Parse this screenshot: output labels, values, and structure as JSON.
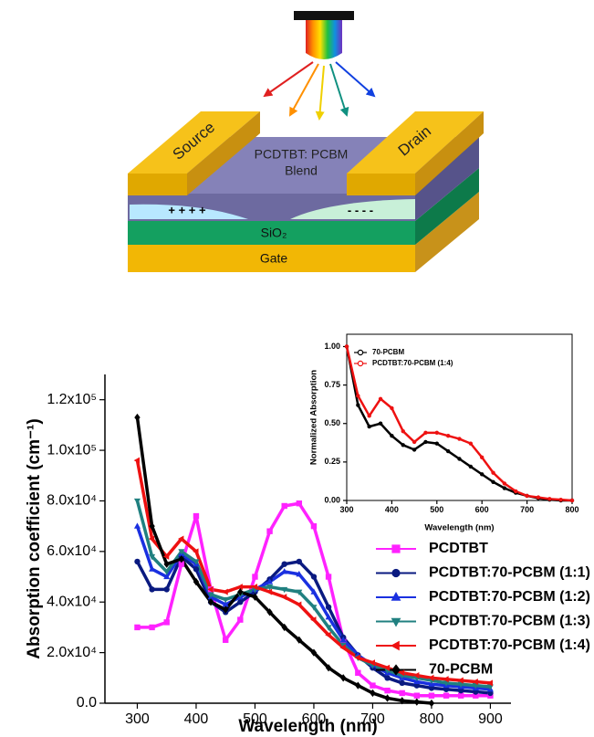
{
  "diagram": {
    "source": "Source",
    "drain": "Drain",
    "blend_line1": "PCDTBT: PCBM",
    "blend_line2": "Blend",
    "holes": "+ + + +",
    "electrons": "- - - -",
    "dielectric": "SiO₂",
    "gate": "Gate"
  },
  "chart_data": [
    {
      "type": "line",
      "x_label": "Wavelength (nm)",
      "y_label": "Absorption coefficient (cm⁻¹)",
      "x": [
        300,
        325,
        350,
        375,
        400,
        425,
        450,
        475,
        500,
        525,
        550,
        575,
        600,
        625,
        650,
        675,
        700,
        725,
        750,
        775,
        800,
        825,
        850,
        875,
        900
      ],
      "xlim": [
        245,
        935
      ],
      "xticks": [
        300,
        400,
        500,
        600,
        700,
        800,
        900
      ],
      "ylim": [
        0,
        130000
      ],
      "yticks": [
        {
          "value": 0,
          "label": "0.0"
        },
        {
          "value": 20000,
          "label": "2.0x10⁴"
        },
        {
          "value": 40000,
          "label": "4.0x10⁴"
        },
        {
          "value": 60000,
          "label": "6.0x10⁴"
        },
        {
          "value": 80000,
          "label": "8.0x10⁴"
        },
        {
          "value": 100000,
          "label": "1.0x10⁵"
        },
        {
          "value": 120000,
          "label": "1.2x10⁵"
        }
      ],
      "legend": "right",
      "grid": false,
      "series": [
        {
          "name": "PCDTBT",
          "color": "#ff22ff",
          "marker": "square",
          "values": [
            30000,
            30000,
            32000,
            55000,
            74000,
            45000,
            25000,
            33000,
            50000,
            68000,
            78000,
            79000,
            70000,
            50000,
            25000,
            12000,
            7000,
            5000,
            4000,
            3000,
            3000,
            3000,
            3000,
            3000,
            3000
          ]
        },
        {
          "name": "PCDTBT:70-PCBM (1:1)",
          "color": "#0a1a80",
          "marker": "circle",
          "values": [
            56000,
            45000,
            45000,
            58000,
            53000,
            40000,
            36000,
            40000,
            44000,
            49000,
            55000,
            56000,
            50000,
            38000,
            26000,
            19000,
            14000,
            10000,
            8000,
            7000,
            6000,
            5500,
            5000,
            4500,
            4000
          ]
        },
        {
          "name": "PCDTBT:70-PCBM (1:2)",
          "color": "#1a30e0",
          "marker": "triangle-up",
          "values": [
            70000,
            53000,
            50000,
            59000,
            55000,
            42000,
            39000,
            42000,
            45000,
            48000,
            52000,
            51000,
            44000,
            34000,
            25000,
            19000,
            15000,
            12000,
            10000,
            8500,
            7500,
            7000,
            6500,
            6000,
            5500
          ]
        },
        {
          "name": "PCDTBT:70-PCBM (1:3)",
          "color": "#208080",
          "marker": "triangle-down",
          "values": [
            80000,
            58000,
            52000,
            60000,
            56000,
            43000,
            41000,
            43000,
            45000,
            46000,
            45000,
            44000,
            38000,
            30000,
            23000,
            18000,
            15000,
            13000,
            11000,
            10000,
            9000,
            8000,
            7500,
            7000,
            6500
          ]
        },
        {
          "name": "PCDTBT:70-PCBM (1:4)",
          "color": "#ee1111",
          "marker": "triangle-left",
          "values": [
            96000,
            65000,
            58000,
            65000,
            60000,
            45000,
            44000,
            46000,
            46000,
            44000,
            42000,
            39000,
            33000,
            27000,
            22000,
            18000,
            16000,
            14000,
            12000,
            11000,
            10000,
            9500,
            9000,
            8500,
            8000
          ]
        },
        {
          "name": "70-PCBM",
          "color": "#000000",
          "marker": "diamond",
          "values": [
            113000,
            70000,
            55000,
            57000,
            48000,
            40000,
            37000,
            44000,
            42000,
            36000,
            30000,
            25000,
            20000,
            14000,
            10000,
            7000,
            4000,
            2000,
            1000,
            500,
            0,
            null,
            null,
            null,
            null
          ]
        }
      ]
    },
    {
      "type": "line",
      "x_label": "Wavelength (nm)",
      "y_label": "Normalized Absorption",
      "x": [
        300,
        325,
        350,
        375,
        400,
        425,
        450,
        475,
        500,
        525,
        550,
        575,
        600,
        625,
        650,
        675,
        700,
        725,
        750,
        775,
        800
      ],
      "xlim": [
        300,
        800
      ],
      "xticks": [
        300,
        400,
        500,
        600,
        700,
        800
      ],
      "ylim": [
        0,
        1.08
      ],
      "yticks": [
        {
          "value": 0,
          "label": "0.00"
        },
        {
          "value": 0.25,
          "label": "0.25"
        },
        {
          "value": 0.5,
          "label": "0.50"
        },
        {
          "value": 0.75,
          "label": "0.75"
        },
        {
          "value": 1,
          "label": "1.00"
        }
      ],
      "legend": "upper left",
      "grid": false,
      "series": [
        {
          "name": "70-PCBM",
          "color": "#000000",
          "marker": "circle",
          "values": [
            1.0,
            0.62,
            0.48,
            0.5,
            0.42,
            0.36,
            0.33,
            0.38,
            0.37,
            0.32,
            0.27,
            0.22,
            0.17,
            0.12,
            0.08,
            0.05,
            0.03,
            0.015,
            0.005,
            0,
            0
          ]
        },
        {
          "name": "PCDTBT:70-PCBM (1:4)",
          "color": "#ee1111",
          "marker": "circle",
          "values": [
            1.0,
            0.68,
            0.55,
            0.66,
            0.6,
            0.45,
            0.38,
            0.44,
            0.44,
            0.42,
            0.4,
            0.37,
            0.28,
            0.18,
            0.11,
            0.06,
            0.03,
            0.02,
            0.01,
            0.005,
            0
          ]
        }
      ]
    }
  ]
}
